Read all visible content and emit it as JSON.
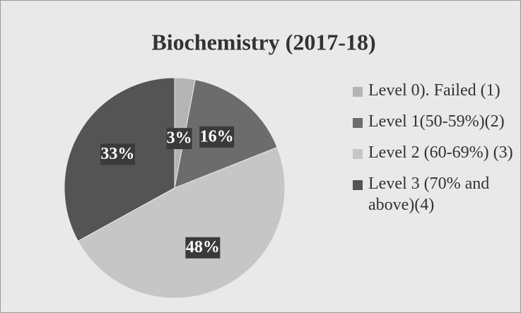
{
  "chart_data": {
    "type": "pie",
    "title": "Biochemistry (2017-18)",
    "categories": [
      "Level 0). Failed (1)",
      "Level 1(50-59%)(2)",
      "Level 2 (60-69%) (3)",
      "Level 3 (70% and above)(4)"
    ],
    "values": [
      3,
      16,
      48,
      33
    ],
    "value_labels": [
      "3%",
      "16%",
      "48%",
      "33%"
    ],
    "colors": [
      "#b4b4b4",
      "#6c6c6c",
      "#c6c6c6",
      "#545454"
    ],
    "legend": "right"
  }
}
